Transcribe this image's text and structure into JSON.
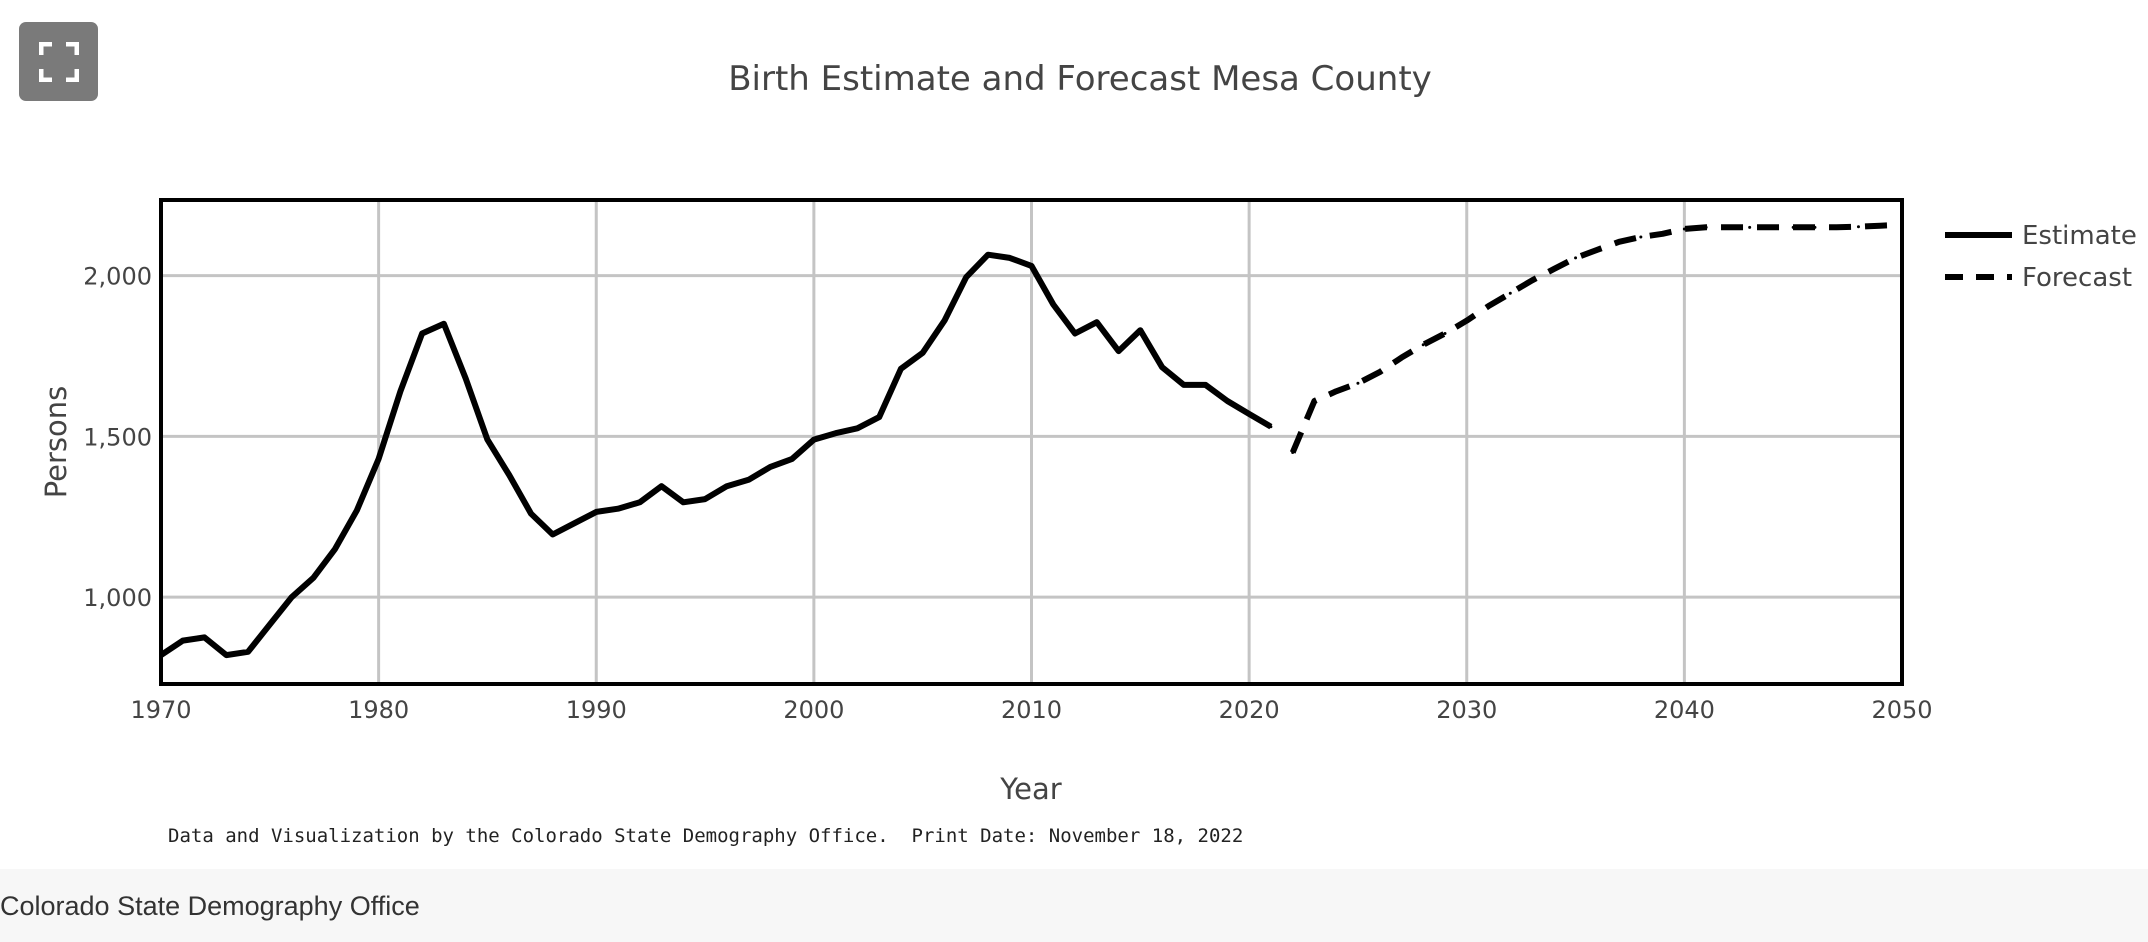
{
  "fullscreen_button": {
    "icon": "expand-icon"
  },
  "chart_data": {
    "type": "line",
    "title": "Birth Estimate and Forecast Mesa County",
    "xlabel": "Year",
    "ylabel": "Persons",
    "xlim": [
      1970,
      2050
    ],
    "ylim": [
      730,
      2235
    ],
    "xticks": [
      1970,
      1980,
      1990,
      2000,
      2010,
      2020,
      2030,
      2040,
      2050
    ],
    "xtick_labels": [
      "1970",
      "1980",
      "1990",
      "2000",
      "2010",
      "2020",
      "2030",
      "2040",
      "2050"
    ],
    "yticks": [
      1000,
      1500,
      2000
    ],
    "ytick_labels": [
      "1,000",
      "1,500",
      "2,000"
    ],
    "grid": true,
    "legend_position": "top-right",
    "series": [
      {
        "name": "Estimate",
        "style": "solid",
        "color": "#000000",
        "x": [
          1970,
          1971,
          1972,
          1973,
          1974,
          1975,
          1976,
          1977,
          1978,
          1979,
          1980,
          1981,
          1982,
          1983,
          1984,
          1985,
          1986,
          1987,
          1988,
          1989,
          1990,
          1991,
          1992,
          1993,
          1994,
          1995,
          1996,
          1997,
          1998,
          1999,
          2000,
          2001,
          2002,
          2003,
          2004,
          2005,
          2006,
          2007,
          2008,
          2009,
          2010,
          2011,
          2012,
          2013,
          2014,
          2015,
          2016,
          2017,
          2018,
          2019,
          2020,
          2021
        ],
        "y": [
          820,
          865,
          875,
          820,
          830,
          915,
          1000,
          1060,
          1150,
          1270,
          1430,
          1640,
          1820,
          1850,
          1680,
          1490,
          1380,
          1260,
          1195,
          1230,
          1265,
          1275,
          1295,
          1345,
          1295,
          1305,
          1345,
          1365,
          1405,
          1430,
          1490,
          1510,
          1525,
          1560,
          1710,
          1760,
          1860,
          1995,
          2065,
          2055,
          2030,
          1910,
          1820,
          1855,
          1765,
          1830,
          1715,
          1660,
          1660,
          1610,
          1570,
          1530
        ]
      },
      {
        "name": "Forecast",
        "style": "dashed",
        "color": "#000000",
        "x": [
          2022,
          2023,
          2024,
          2025,
          2026,
          2027,
          2028,
          2029,
          2030,
          2031,
          2032,
          2033,
          2034,
          2035,
          2036,
          2037,
          2038,
          2039,
          2040,
          2041,
          2042,
          2043,
          2044,
          2045,
          2046,
          2047,
          2048,
          2049,
          2050
        ],
        "y": [
          1450,
          1610,
          1640,
          1665,
          1700,
          1745,
          1785,
          1820,
          1860,
          1905,
          1945,
          1985,
          2020,
          2055,
          2080,
          2105,
          2120,
          2130,
          2145,
          2150,
          2150,
          2150,
          2150,
          2150,
          2150,
          2150,
          2152,
          2155,
          2158
        ]
      }
    ],
    "annotation": "Data and Visualization by the Colorado State Demography Office.  Print Date: November 18, 2022"
  },
  "footer": {
    "text": "Colorado State Demography Office"
  }
}
